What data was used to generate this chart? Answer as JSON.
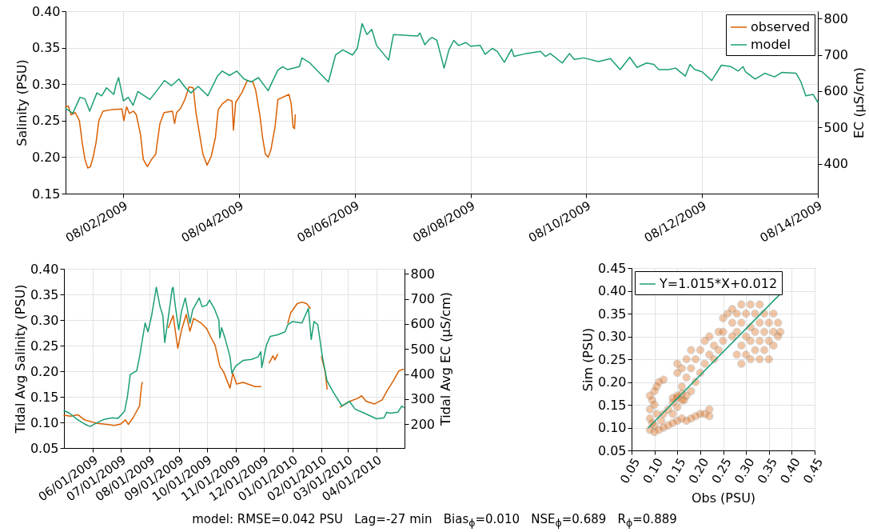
{
  "chart_data": [
    {
      "type": "line",
      "ylabel": "Salinity (PSU)",
      "y2label": "EC (μS/cm)",
      "xlim": [
        "2009-08-01",
        "2009-08-14"
      ],
      "xticks": [
        {
          "value": "2009-08-02",
          "label": "08/02/2009"
        },
        {
          "value": "2009-08-04",
          "label": "08/04/2009"
        },
        {
          "value": "2009-08-06",
          "label": "08/06/2009"
        },
        {
          "value": "2009-08-08",
          "label": "08/08/2009"
        },
        {
          "value": "2009-08-10",
          "label": "08/10/2009"
        },
        {
          "value": "2009-08-12",
          "label": "08/12/2009"
        },
        {
          "value": "2009-08-14",
          "label": "08/14/2009"
        }
      ],
      "ylim": [
        0.15,
        0.4
      ],
      "yticks": [
        {
          "value": 0.15,
          "label": "0.15"
        },
        {
          "value": 0.2,
          "label": "0.20"
        },
        {
          "value": 0.25,
          "label": "0.25"
        },
        {
          "value": 0.3,
          "label": "0.30"
        },
        {
          "value": 0.35,
          "label": "0.35"
        },
        {
          "value": 0.4,
          "label": "0.40"
        }
      ],
      "y2lim": [
        318,
        820
      ],
      "y2ticks": [
        400,
        500,
        600,
        700,
        800
      ],
      "grid": true,
      "legend": "top right",
      "series": [
        {
          "name": "observed",
          "color": "#d95f02",
          "x": [
            "2009-08-01T00:00",
            "2009-08-01T01:09",
            "2009-08-01T02:18",
            "2009-08-01T04:02",
            "2009-08-01T05:45",
            "2009-08-01T06:54",
            "2009-08-01T08:03",
            "2009-08-01T09:12",
            "2009-08-01T10:21",
            "2009-08-01T11:30",
            "2009-08-01T12:39",
            "2009-08-01T13:48",
            "2009-08-01T15:32",
            "2009-08-01T18:59",
            "2009-08-01T23:22",
            "2009-08-02T00:10",
            "2009-08-02T01:19",
            "2009-08-02T02:28",
            "2009-08-02T04:12",
            "2009-08-02T05:21",
            "2009-08-02T07:05",
            "2009-08-02T08:14",
            "2009-08-02T09:57",
            "2009-08-02T11:41",
            "2009-08-02T13:24",
            "2009-08-02T15:08",
            "2009-08-02T16:52",
            "2009-08-02T20:19",
            "2009-08-02T21:14",
            "2009-08-02T22:02",
            "2009-08-02T23:46",
            "2009-08-03T01:29",
            "2009-08-03T03:13",
            "2009-08-03T04:57",
            "2009-08-03T06:06",
            "2009-08-03T07:49",
            "2009-08-03T08:58",
            "2009-08-03T10:42",
            "2009-08-03T12:26",
            "2009-08-03T14:09",
            "2009-08-03T15:18",
            "2009-08-03T17:02",
            "2009-08-03T19:20",
            "2009-08-03T21:04",
            "2009-08-03T21:38",
            "2009-08-03T22:34",
            "2009-08-04T01:05",
            "2009-08-04T03:23",
            "2009-08-04T05:41",
            "2009-08-04T06:50",
            "2009-08-04T08:34",
            "2009-08-04T09:43",
            "2009-08-04T10:52",
            "2009-08-04T12:01",
            "2009-08-04T13:10",
            "2009-08-04T14:54",
            "2009-08-04T16:03",
            "2009-08-04T20:40",
            "2009-08-04T21:35",
            "2009-08-04T22:23",
            "2009-08-04T22:58",
            "2009-08-04T23:18"
          ],
          "values": [
            0.269,
            0.27,
            0.258,
            0.261,
            0.25,
            0.22,
            0.197,
            0.185,
            0.187,
            0.201,
            0.22,
            0.25,
            0.263,
            0.265,
            0.266,
            0.25,
            0.269,
            0.26,
            0.263,
            0.258,
            0.231,
            0.197,
            0.187,
            0.197,
            0.204,
            0.246,
            0.261,
            0.263,
            0.246,
            0.261,
            0.267,
            0.279,
            0.296,
            0.295,
            0.261,
            0.227,
            0.204,
            0.189,
            0.201,
            0.227,
            0.265,
            0.273,
            0.279,
            0.277,
            0.237,
            0.275,
            0.288,
            0.305,
            0.303,
            0.292,
            0.258,
            0.227,
            0.204,
            0.2,
            0.21,
            0.242,
            0.279,
            0.286,
            0.273,
            0.241,
            0.239,
            0.258
          ]
        },
        {
          "name": "model",
          "color": "#1b9e77",
          "x": [
            "2009-08-01T00:00",
            "2009-08-01T03:00",
            "2009-08-01T06:00",
            "2009-08-01T08:00",
            "2009-08-01T10:00",
            "2009-08-01T13:00",
            "2009-08-01T15:00",
            "2009-08-01T17:00",
            "2009-08-01T20:00",
            "2009-08-01T21:00",
            "2009-08-01T22:00",
            "2009-08-02T00:00",
            "2009-08-02T02:00",
            "2009-08-02T04:00",
            "2009-08-02T06:00",
            "2009-08-02T11:00",
            "2009-08-02T15:00",
            "2009-08-02T17:00",
            "2009-08-02T20:00",
            "2009-08-02T23:00",
            "2009-08-03T02:00",
            "2009-08-03T04:00",
            "2009-08-03T07:00",
            "2009-08-03T11:00",
            "2009-08-03T15:00",
            "2009-08-03T17:00",
            "2009-08-03T20:00",
            "2009-08-03T23:00",
            "2009-08-04T02:00",
            "2009-08-04T05:00",
            "2009-08-04T08:00",
            "2009-08-04T12:00",
            "2009-08-04T16:00",
            "2009-08-04T18:00",
            "2009-08-04T20:00",
            "2009-08-05T01:00",
            "2009-08-05T02:00",
            "2009-08-05T05:00",
            "2009-08-05T08:00",
            "2009-08-05T13:00",
            "2009-08-05T16:00",
            "2009-08-05T19:00",
            "2009-08-05T23:00",
            "2009-08-06T01:00",
            "2009-08-06T03:00",
            "2009-08-06T05:00",
            "2009-08-06T07:00",
            "2009-08-06T09:00",
            "2009-08-06T14:00",
            "2009-08-06T16:00",
            "2009-08-07T02:00",
            "2009-08-07T03:00",
            "2009-08-07T05:00",
            "2009-08-07T07:00",
            "2009-08-07T08:00",
            "2009-08-07T10:00",
            "2009-08-07T13:00",
            "2009-08-07T15:00",
            "2009-08-07T17:00",
            "2009-08-07T19:00",
            "2009-08-07T22:00",
            "2009-08-08T00:00",
            "2009-08-08T04:00",
            "2009-08-08T06:00",
            "2009-08-08T09:00",
            "2009-08-08T11:00",
            "2009-08-08T14:00",
            "2009-08-08T17:00",
            "2009-08-08T18:00",
            "2009-08-08T23:00",
            "2009-08-09T05:00",
            "2009-08-09T07:00",
            "2009-08-09T09:00",
            "2009-08-09T14:00",
            "2009-08-09T17:00",
            "2009-08-09T19:00",
            "2009-08-09T23:00",
            "2009-08-10T05:00",
            "2009-08-10T10:00",
            "2009-08-10T14:00",
            "2009-08-10T18:00",
            "2009-08-10T21:00",
            "2009-08-11T01:00",
            "2009-08-11T04:00",
            "2009-08-11T06:00",
            "2009-08-11T10:00",
            "2009-08-11T13:00",
            "2009-08-11T17:00",
            "2009-08-11T19:00",
            "2009-08-11T21:00",
            "2009-08-12T00:00",
            "2009-08-12T04:00",
            "2009-08-12T08:00",
            "2009-08-12T12:00",
            "2009-08-12T15:00",
            "2009-08-12T17:00",
            "2009-08-12T18:00",
            "2009-08-12T22:00",
            "2009-08-13T02:00",
            "2009-08-13T06:00",
            "2009-08-13T09:00",
            "2009-08-13T15:00",
            "2009-08-13T17:00",
            "2009-08-13T19:00",
            "2009-08-13T22:00",
            "2009-08-14T00:00"
          ],
          "values": [
            0.267,
            0.26,
            0.282,
            0.28,
            0.263,
            0.288,
            0.284,
            0.295,
            0.286,
            0.3,
            0.309,
            0.277,
            0.282,
            0.271,
            0.29,
            0.279,
            0.296,
            0.305,
            0.298,
            0.307,
            0.294,
            0.288,
            0.297,
            0.284,
            0.311,
            0.318,
            0.312,
            0.318,
            0.307,
            0.303,
            0.309,
            0.291,
            0.319,
            0.324,
            0.32,
            0.324,
            0.336,
            0.33,
            0.32,
            0.303,
            0.34,
            0.347,
            0.34,
            0.349,
            0.383,
            0.368,
            0.375,
            0.353,
            0.333,
            0.368,
            0.366,
            0.37,
            0.354,
            0.362,
            0.364,
            0.36,
            0.322,
            0.347,
            0.36,
            0.353,
            0.357,
            0.352,
            0.353,
            0.341,
            0.349,
            0.345,
            0.33,
            0.348,
            0.338,
            0.342,
            0.345,
            0.338,
            0.342,
            0.329,
            0.342,
            0.334,
            0.336,
            0.331,
            0.335,
            0.32,
            0.337,
            0.323,
            0.329,
            0.327,
            0.32,
            0.32,
            0.322,
            0.311,
            0.327,
            0.32,
            0.317,
            0.305,
            0.326,
            0.324,
            0.318,
            0.324,
            0.317,
            0.307,
            0.315,
            0.31,
            0.316,
            0.315,
            0.303,
            0.284,
            0.286,
            0.275
          ]
        }
      ]
    },
    {
      "type": "line",
      "ylabel": "Tidal Avg Salinity (PSU)",
      "y2label": "Tidal Avg EC (μS/cm)",
      "xlim": [
        "2009-05-01",
        "2010-05-01"
      ],
      "xticks": [
        {
          "value": "2009-06-01",
          "label": "06/01/2009"
        },
        {
          "value": "2009-07-01",
          "label": "07/01/2009"
        },
        {
          "value": "2009-08-01",
          "label": "08/01/2009"
        },
        {
          "value": "2009-09-01",
          "label": "09/01/2009"
        },
        {
          "value": "2009-10-01",
          "label": "10/01/2009"
        },
        {
          "value": "2009-11-01",
          "label": "11/01/2009"
        },
        {
          "value": "2009-12-01",
          "label": "12/01/2009"
        },
        {
          "value": "2010-01-01",
          "label": "01/01/2010"
        },
        {
          "value": "2010-02-01",
          "label": "02/01/2010"
        },
        {
          "value": "2010-03-01",
          "label": "03/01/2010"
        },
        {
          "value": "2010-04-01",
          "label": "04/01/2010"
        }
      ],
      "ylim": [
        0.05,
        0.4
      ],
      "yticks": [
        {
          "value": 0.05,
          "label": "0.05"
        },
        {
          "value": 0.1,
          "label": "0.10"
        },
        {
          "value": 0.15,
          "label": "0.15"
        },
        {
          "value": 0.2,
          "label": "0.20"
        },
        {
          "value": 0.25,
          "label": "0.25"
        },
        {
          "value": 0.3,
          "label": "0.30"
        },
        {
          "value": 0.35,
          "label": "0.35"
        },
        {
          "value": 0.4,
          "label": "0.40"
        }
      ],
      "y2lim": [
        105,
        820
      ],
      "y2ticks": [
        200,
        300,
        400,
        500,
        600,
        700,
        800
      ],
      "grid": true,
      "series": [
        {
          "color": "#d95f02",
          "x": [
            "2009-05-01",
            "2009-05-08",
            "2009-05-16",
            "2009-05-23",
            "2009-05-31",
            "2009-06-06",
            "2009-06-16",
            "2009-06-24",
            "2009-07-01",
            "2009-07-06",
            "2009-07-09",
            "2009-07-14",
            "2009-07-21",
            "2009-07-23",
            "2009-07-24",
            "2009-08-05",
            "2009-08-21",
            "2009-08-26",
            "2009-08-31",
            "2009-09-04",
            "2009-09-09",
            "2009-09-13",
            "2009-09-17",
            "2009-09-25",
            "2009-10-01",
            "2009-10-05",
            "2009-10-10",
            "2009-10-15",
            "2009-10-19",
            "2009-10-26",
            "2009-10-29",
            "2009-11-02",
            "2009-11-09",
            "2009-11-17",
            "2009-11-22",
            "2009-11-28",
            "2009-12-02",
            "2009-12-07",
            "2009-12-11",
            "2009-12-13",
            "2009-12-16",
            "2009-12-21",
            "2009-12-27",
            "2009-12-30",
            "2010-01-06",
            "2010-01-11",
            "2010-01-16",
            "2010-01-20",
            "2010-01-26",
            "2010-02-01",
            "2010-02-05",
            "2010-02-07",
            "2010-02-14",
            "2010-02-21",
            "2010-03-03",
            "2010-03-12",
            "2010-03-16",
            "2010-03-21",
            "2010-03-30",
            "2010-04-07",
            "2010-04-13",
            "2010-04-19",
            "2010-04-25",
            "2010-04-30"
          ],
          "values": [
            0.114,
            0.112,
            0.115,
            0.105,
            0.101,
            0.098,
            0.096,
            0.094,
            0.097,
            0.105,
            0.096,
            0.109,
            0.132,
            0.17,
            0.178,
            null,
            0.285,
            0.309,
            0.245,
            0.28,
            0.311,
            0.278,
            0.303,
            0.294,
            0.283,
            0.268,
            0.251,
            0.21,
            0.199,
            0.167,
            0.196,
            0.175,
            0.178,
            0.173,
            0.17,
            0.17,
            null,
            0.216,
            0.23,
            0.222,
            0.233,
            null,
            0.294,
            0.314,
            0.332,
            0.335,
            0.332,
            0.323,
            null,
            0.228,
            0.199,
            0.165,
            null,
            0.13,
            0.141,
            0.147,
            0.152,
            0.141,
            0.136,
            0.144,
            0.164,
            0.181,
            0.201,
            0.204
          ]
        },
        {
          "color": "#1b9e77",
          "x": [
            "2009-05-01",
            "2009-05-07",
            "2009-05-15",
            "2009-05-24",
            "2009-05-29",
            "2009-06-03",
            "2009-06-13",
            "2009-06-22",
            "2009-06-28",
            "2009-07-05",
            "2009-07-08",
            "2009-07-11",
            "2009-07-18",
            "2009-07-21",
            "2009-07-27",
            "2009-07-30",
            "2009-08-03",
            "2009-08-08",
            "2009-08-12",
            "2009-08-15",
            "2009-08-17",
            "2009-08-20",
            "2009-08-25",
            "2009-08-26",
            "2009-08-28",
            "2009-09-01",
            "2009-09-04",
            "2009-09-08",
            "2009-09-13",
            "2009-09-16",
            "2009-09-23",
            "2009-09-26",
            "2009-10-01",
            "2009-10-04",
            "2009-10-09",
            "2009-10-14",
            "2009-10-15",
            "2009-10-17",
            "2009-10-21",
            "2009-10-26",
            "2009-10-28",
            "2009-11-01",
            "2009-11-09",
            "2009-11-18",
            "2009-11-25",
            "2009-11-28",
            "2009-11-29",
            "2009-12-04",
            "2009-12-08",
            "2009-12-16",
            "2009-12-24",
            "2009-12-27",
            "2010-01-01",
            "2010-01-11",
            "2010-01-18",
            "2010-01-21",
            "2010-01-24",
            "2010-01-28",
            "2010-02-02",
            "2010-02-07",
            "2010-02-14",
            "2010-02-23",
            "2010-03-03",
            "2010-03-09",
            "2010-03-19",
            "2010-04-01",
            "2010-04-09",
            "2010-04-12",
            "2010-04-15",
            "2010-04-24",
            "2010-04-28",
            "2010-04-30"
          ],
          "values": [
            0.123,
            0.118,
            0.106,
            0.096,
            0.092,
            0.097,
            0.106,
            0.109,
            0.108,
            0.122,
            0.15,
            0.193,
            0.201,
            0.228,
            0.294,
            0.277,
            0.309,
            0.364,
            0.326,
            0.309,
            0.256,
            0.294,
            0.361,
            0.364,
            0.332,
            0.281,
            0.317,
            0.343,
            0.294,
            0.32,
            0.343,
            0.326,
            0.329,
            0.339,
            0.323,
            0.3,
            0.265,
            0.285,
            0.262,
            0.228,
            0.196,
            0.21,
            0.221,
            0.223,
            0.228,
            0.238,
            0.207,
            0.251,
            0.268,
            0.271,
            0.277,
            0.291,
            0.297,
            0.294,
            0.323,
            0.262,
            0.297,
            0.291,
            0.228,
            0.181,
            0.158,
            0.132,
            0.141,
            0.126,
            0.118,
            0.107,
            0.109,
            0.12,
            0.118,
            0.12,
            0.132,
            0.129
          ]
        }
      ]
    },
    {
      "type": "scatter",
      "xlabel": "Obs (PSU)",
      "ylabel": "Sim (PSU)",
      "xlim": [
        0.05,
        0.45
      ],
      "ylim": [
        0.05,
        0.45
      ],
      "xticks": [
        {
          "value": 0.05,
          "label": "0.05"
        },
        {
          "value": 0.1,
          "label": "0.10"
        },
        {
          "value": 0.15,
          "label": "0.15"
        },
        {
          "value": 0.2,
          "label": "0.20"
        },
        {
          "value": 0.25,
          "label": "0.25"
        },
        {
          "value": 0.3,
          "label": "0.30"
        },
        {
          "value": 0.35,
          "label": "0.35"
        },
        {
          "value": 0.4,
          "label": "0.40"
        },
        {
          "value": 0.45,
          "label": "0.45"
        }
      ],
      "yticks": [
        {
          "value": 0.05,
          "label": "0.05"
        },
        {
          "value": 0.1,
          "label": "0.10"
        },
        {
          "value": 0.15,
          "label": "0.15"
        },
        {
          "value": 0.2,
          "label": "0.20"
        },
        {
          "value": 0.25,
          "label": "0.25"
        },
        {
          "value": 0.3,
          "label": "0.30"
        },
        {
          "value": 0.35,
          "label": "0.35"
        },
        {
          "value": 0.4,
          "label": "0.40"
        },
        {
          "value": 0.45,
          "label": "0.45"
        }
      ],
      "grid": true,
      "legend": "top left",
      "annotations": [
        "model: RMSE=0.042 PSU   Lag=-27 min   Bias$_{ϕ}$=0.010   NSE$_{ϕ}$=0.689   R$_{ϕ}$=0.889"
      ],
      "series": [
        {
          "color": "#d95f02",
          "x": [
            0.09,
            0.1,
            0.11,
            0.1,
            0.12,
            0.095,
            0.115,
            0.13,
            0.09,
            0.09,
            0.095,
            0.09,
            0.1,
            0.105,
            0.11,
            0.12,
            0.1,
            0.105,
            0.14,
            0.15,
            0.16,
            0.17,
            0.18,
            0.19,
            0.2,
            0.21,
            0.22,
            0.22,
            0.14,
            0.15,
            0.12,
            0.13,
            0.14,
            0.15,
            0.16,
            0.165,
            0.14,
            0.15,
            0.16,
            0.17,
            0.15,
            0.15,
            0.16,
            0.16,
            0.17,
            0.17,
            0.18,
            0.18,
            0.18,
            0.19,
            0.19,
            0.2,
            0.2,
            0.21,
            0.21,
            0.22,
            0.22,
            0.23,
            0.23,
            0.24,
            0.24,
            0.25,
            0.25,
            0.25,
            0.26,
            0.27,
            0.27,
            0.27,
            0.28,
            0.28,
            0.28,
            0.29,
            0.29,
            0.29,
            0.29,
            0.3,
            0.3,
            0.3,
            0.31,
            0.31,
            0.31,
            0.31,
            0.32,
            0.32,
            0.32,
            0.33,
            0.33,
            0.33,
            0.33,
            0.34,
            0.34,
            0.34,
            0.35,
            0.35,
            0.35,
            0.36,
            0.36,
            0.36,
            0.37,
            0.37,
            0.375
          ],
          "values": [
            0.095,
            0.09,
            0.095,
            0.105,
            0.1,
            0.11,
            0.115,
            0.105,
            0.12,
            0.14,
            0.16,
            0.17,
            0.18,
            0.19,
            0.2,
            0.205,
            0.15,
            0.13,
            0.11,
            0.115,
            0.12,
            0.115,
            0.12,
            0.125,
            0.13,
            0.13,
            0.14,
            0.125,
            0.13,
            0.145,
            0.13,
            0.14,
            0.155,
            0.165,
            0.175,
            0.16,
            0.165,
            0.17,
            0.16,
            0.17,
            0.22,
            0.24,
            0.19,
            0.23,
            0.21,
            0.25,
            0.18,
            0.23,
            0.27,
            0.2,
            0.25,
            0.22,
            0.27,
            0.24,
            0.29,
            0.26,
            0.3,
            0.25,
            0.28,
            0.27,
            0.31,
            0.29,
            0.31,
            0.34,
            0.35,
            0.3,
            0.33,
            0.36,
            0.26,
            0.31,
            0.35,
            0.24,
            0.28,
            0.33,
            0.37,
            0.26,
            0.3,
            0.35,
            0.25,
            0.29,
            0.32,
            0.37,
            0.27,
            0.31,
            0.35,
            0.25,
            0.29,
            0.33,
            0.37,
            0.27,
            0.31,
            0.35,
            0.25,
            0.29,
            0.33,
            0.28,
            0.31,
            0.35,
            0.3,
            0.33,
            0.31
          ]
        },
        {
          "type": "line",
          "name": "Y=1.015*X+0.012",
          "color": "#1b9e77",
          "x": [
            0.087,
            0.373
          ],
          "values": [
            0.1,
            0.391
          ]
        }
      ]
    }
  ]
}
